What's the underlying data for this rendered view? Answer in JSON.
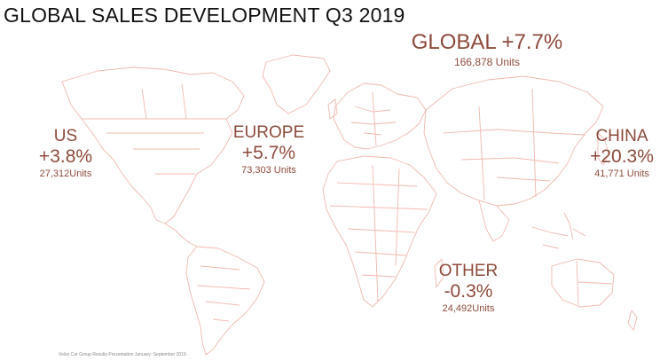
{
  "title": "GLOBAL SALES DEVELOPMENT Q3 2019",
  "global": {
    "label": "GLOBAL",
    "change": "+7.7%",
    "units": "166,878 Units"
  },
  "regions": {
    "us": {
      "name": "US",
      "change": "+3.8%",
      "units": "27,312Units"
    },
    "europe": {
      "name": "EUROPE",
      "change": "+5.7%",
      "units": "73,303 Units"
    },
    "china": {
      "name": "CHINA",
      "change": "+20.3%",
      "units": "41,771 Units"
    },
    "other": {
      "name": "OTHER",
      "change": "-0.3%",
      "units": "24,492Units"
    }
  },
  "footer": "Volvo Car Group Results Presentation January- September 2019 ·",
  "colors": {
    "accent": "#8c4a3a",
    "map_outline": "#f0b8ae",
    "title": "#111111"
  },
  "icons": {
    "map": "world-map-outline"
  }
}
